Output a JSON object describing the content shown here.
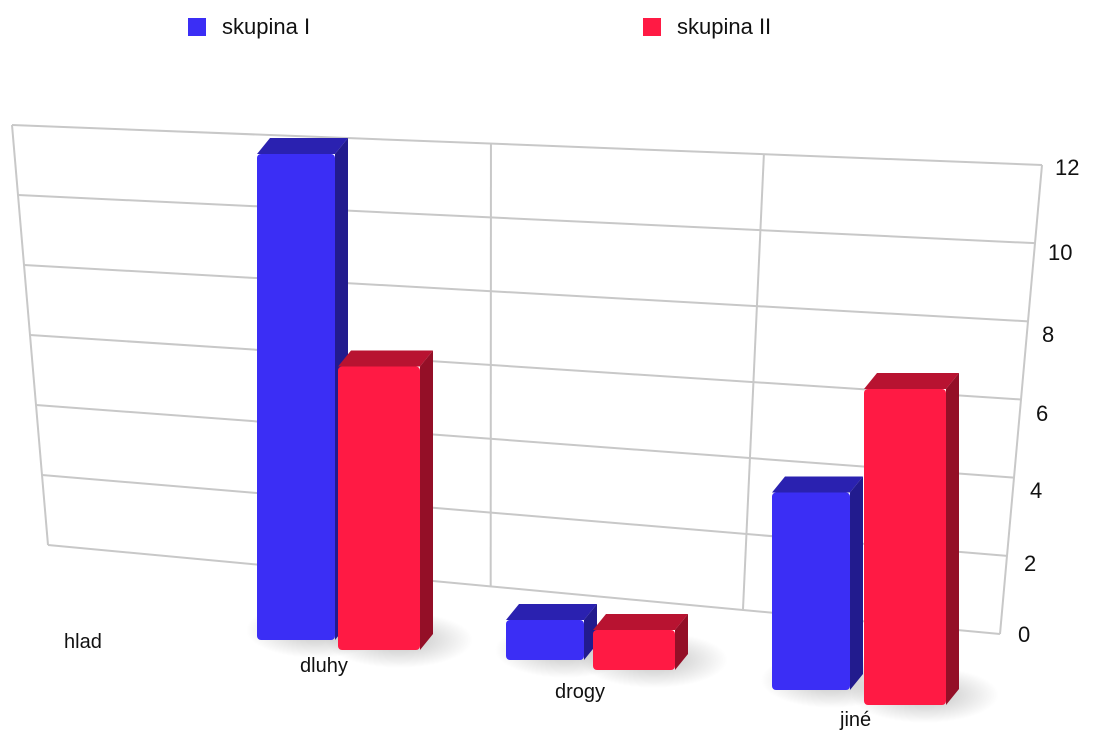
{
  "chart_data": {
    "type": "bar",
    "categories": [
      "hlad",
      "dluhy",
      "drogy",
      "jiné"
    ],
    "series": [
      {
        "name": "skupina I",
        "values": [
          0,
          12,
          1,
          5
        ],
        "color": "#3b2ef5"
      },
      {
        "name": "skupina II",
        "values": [
          0,
          7,
          1,
          8
        ],
        "color": "#ff1a44"
      }
    ],
    "yticks": [
      "0",
      "2",
      "4",
      "6",
      "8",
      "10",
      "12"
    ],
    "ylim": [
      0,
      12
    ],
    "grid": true,
    "legend_position": "top"
  }
}
